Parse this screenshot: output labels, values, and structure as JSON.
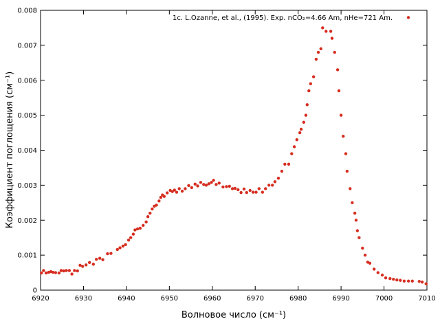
{
  "chart_data": {
    "type": "scatter",
    "xlabel": "Волновое число (см⁻¹)",
    "ylabel": "Коэффициент поглощения (см⁻¹)",
    "xlim": [
      6920,
      7010
    ],
    "ylim": [
      0,
      0.008
    ],
    "xticks": [
      6920,
      6930,
      6940,
      6950,
      6960,
      6970,
      6980,
      6990,
      7000,
      7010
    ],
    "yticks": [
      0,
      0.001,
      0.002,
      0.003,
      0.004,
      0.005,
      0.006,
      0.007,
      0.008
    ],
    "legend": "top-right",
    "x": [
      6920.2,
      6920.7,
      6921.3,
      6921.9,
      6922.4,
      6922.9,
      6923.5,
      6924.3,
      6924.8,
      6925.4,
      6926.0,
      6926.7,
      6927.3,
      6927.9,
      6928.6,
      6929.2,
      6929.8,
      6930.6,
      6931.4,
      6932.3,
      6933.0,
      6933.8,
      6934.5,
      6935.6,
      6936.4,
      6937.9,
      6938.5,
      6939.2,
      6939.8,
      6940.5,
      6941.0,
      6941.6,
      6942.0,
      6942.6,
      6943.2,
      6943.9,
      6944.6,
      6945.0,
      6945.5,
      6946.0,
      6946.5,
      6947.0,
      6947.6,
      6948.0,
      6948.4,
      6948.8,
      6949.5,
      6950.2,
      6950.7,
      6951.2,
      6951.7,
      6952.3,
      6953.0,
      6953.7,
      6954.5,
      6955.2,
      6956.0,
      6956.6,
      6957.3,
      6958.0,
      6958.6,
      6959.2,
      6959.8,
      6960.3,
      6960.9,
      6961.6,
      6962.5,
      6963.3,
      6964.0,
      6964.7,
      6965.3,
      6966.0,
      6966.7,
      6967.4,
      6968.0,
      6968.8,
      6969.5,
      6970.2,
      6970.9,
      6971.7,
      6972.4,
      6973.2,
      6974.0,
      6974.6,
      6975.4,
      6976.2,
      6976.9,
      6977.8,
      6978.5,
      6979.1,
      6979.7,
      6980.4,
      6980.7,
      6981.3,
      6981.8,
      6982.1,
      6982.5,
      6982.9,
      6983.6,
      6984.2,
      6984.7,
      6985.3,
      6985.7,
      6986.5,
      6987.6,
      6987.9,
      6988.5,
      6989.2,
      6989.5,
      6990.0,
      6990.5,
      6991.1,
      6991.4,
      6992.1,
      6992.6,
      6993.2,
      6993.5,
      6993.8,
      6994.2,
      6995.0,
      6995.6,
      6996.2,
      6996.7,
      6997.7,
      6998.6,
      6999.6,
      7000.4,
      7001.4,
      7002.2,
      7003.0,
      7003.8,
      7004.7,
      7005.7,
      7006.6,
      7008.2,
      7008.9,
      7009.8
    ],
    "series": [
      {
        "name": "1c. L.Ozanne, et al., (1995). Exp. nCO₂=4.66 Am, nHe=721 Am.",
        "color": "#d62d20",
        "values": [
          0.00049,
          0.00056,
          0.00049,
          0.00051,
          0.00053,
          0.00051,
          0.0005,
          0.00049,
          0.00056,
          0.00055,
          0.00056,
          0.00056,
          0.00046,
          0.00056,
          0.00055,
          0.00071,
          0.00068,
          0.00072,
          0.00079,
          0.00074,
          0.00088,
          0.00091,
          0.00087,
          0.00104,
          0.00105,
          0.00116,
          0.00121,
          0.00126,
          0.0013,
          0.00143,
          0.0015,
          0.0016,
          0.00172,
          0.00175,
          0.00177,
          0.00185,
          0.00195,
          0.0021,
          0.0022,
          0.00232,
          0.0024,
          0.00243,
          0.00255,
          0.00265,
          0.00272,
          0.00268,
          0.00278,
          0.00285,
          0.00282,
          0.00286,
          0.0028,
          0.0029,
          0.00283,
          0.0029,
          0.00299,
          0.00293,
          0.00303,
          0.00298,
          0.00308,
          0.00302,
          0.003,
          0.00304,
          0.00308,
          0.00314,
          0.00302,
          0.00306,
          0.00295,
          0.00296,
          0.00297,
          0.0029,
          0.00291,
          0.00287,
          0.00279,
          0.00289,
          0.00279,
          0.00285,
          0.0028,
          0.0028,
          0.0029,
          0.0028,
          0.0029,
          0.003,
          0.003,
          0.0031,
          0.0032,
          0.0034,
          0.0036,
          0.0036,
          0.0039,
          0.0041,
          0.0043,
          0.0045,
          0.0046,
          0.0048,
          0.005,
          0.0053,
          0.0057,
          0.0059,
          0.0061,
          0.0066,
          0.0068,
          0.0069,
          0.0075,
          0.0074,
          0.0074,
          0.0072,
          0.0068,
          0.0063,
          0.0057,
          0.005,
          0.0044,
          0.0039,
          0.0034,
          0.0029,
          0.0025,
          0.0022,
          0.002,
          0.0017,
          0.0015,
          0.0012,
          0.001,
          0.0008,
          0.00077,
          0.0006,
          0.0005,
          0.00043,
          0.00035,
          0.00033,
          0.00031,
          0.00029,
          0.00028,
          0.00026,
          0.00026,
          0.00026,
          0.00025,
          0.00023,
          0.00018
        ]
      }
    ]
  }
}
